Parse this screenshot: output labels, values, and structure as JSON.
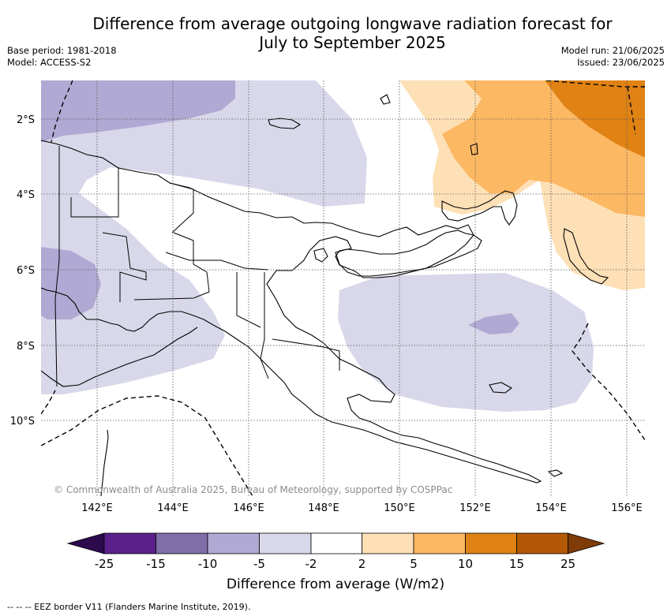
{
  "header": {
    "title_line1": "Difference from average outgoing longwave radiation forecast for",
    "title_line2": "July to September 2025",
    "base_period": "Base period: 1981-2018",
    "model": "Model: ACCESS-S2",
    "model_run": "Model run: 21/06/2025",
    "issued": "Issued: 23/06/2025"
  },
  "map": {
    "copyright": "© Commonwealth of Australia 2025, Bureau of Meteorology, supported by COSPPac",
    "lat_labels": [
      "2°S",
      "4°S",
      "6°S",
      "8°S",
      "10°S"
    ],
    "lon_labels": [
      "142°E",
      "144°E",
      "146°E",
      "148°E",
      "150°E",
      "152°E",
      "154°E",
      "156°E"
    ]
  },
  "colorbar": {
    "title": "Difference from average (W/m2)",
    "ticks": [
      "-25",
      "-15",
      "-10",
      "-5",
      "-2",
      "2",
      "5",
      "10",
      "15",
      "25"
    ],
    "colors": {
      "below_min": "#2d0a4e",
      "c1": "#59208b",
      "c2": "#7f6eaa",
      "c3": "#b0a9d3",
      "c4": "#d8d8ea",
      "c5": "#ffffff",
      "c6": "#fee0b6",
      "c7": "#fdb863",
      "c8": "#e08214",
      "c9": "#b35806",
      "above_max": "#7f3b08"
    }
  },
  "footnote": "--  --  -- EEZ border V11 (Flanders Marine Institute, 2019)."
}
